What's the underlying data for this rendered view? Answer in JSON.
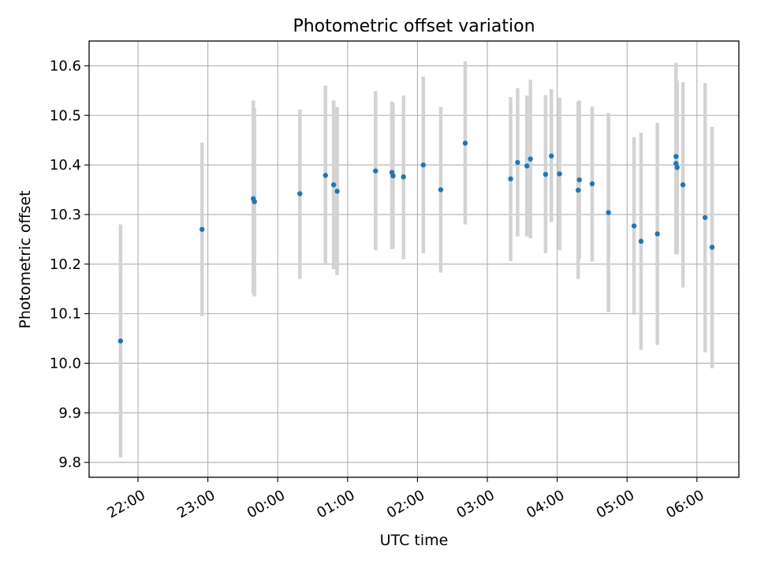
{
  "chart_data": {
    "type": "scatter",
    "title": "Photometric offset variation",
    "xlabel": "UTC time",
    "ylabel": "Photometric offset",
    "x_tick_labels": [
      "22:00",
      "23:00",
      "00:00",
      "01:00",
      "02:00",
      "03:00",
      "04:00",
      "05:00",
      "06:00"
    ],
    "y_tick_labels": [
      "9.8",
      "9.9",
      "10.0",
      "10.1",
      "10.2",
      "10.3",
      "10.4",
      "10.5",
      "10.6"
    ],
    "x_range_hours": [
      -0.7,
      8.6
    ],
    "x_ticks_hours": [
      0,
      1,
      2,
      3,
      4,
      5,
      6,
      7,
      8
    ],
    "ylim": [
      9.77,
      10.65
    ],
    "y_ticks": [
      9.8,
      9.9,
      10.0,
      10.1,
      10.2,
      10.3,
      10.4,
      10.5,
      10.6
    ],
    "grid": true,
    "point_color": "#1f77b4",
    "errorbar_color": "#d3d3d3",
    "points": [
      {
        "t": "21:45",
        "y": 10.045,
        "lo": 9.81,
        "hi": 10.28
      },
      {
        "t": "22:55",
        "y": 10.27,
        "lo": 10.095,
        "hi": 10.445
      },
      {
        "t": "23:39",
        "y": 10.332,
        "lo": 10.14,
        "hi": 10.53
      },
      {
        "t": "23:40",
        "y": 10.326,
        "lo": 10.135,
        "hi": 10.515
      },
      {
        "t": "00:19",
        "y": 10.342,
        "lo": 10.17,
        "hi": 10.512
      },
      {
        "t": "00:41",
        "y": 10.379,
        "lo": 10.198,
        "hi": 10.56
      },
      {
        "t": "00:48",
        "y": 10.36,
        "lo": 10.19,
        "hi": 10.53
      },
      {
        "t": "00:51",
        "y": 10.347,
        "lo": 10.178,
        "hi": 10.517
      },
      {
        "t": "01:24",
        "y": 10.388,
        "lo": 10.228,
        "hi": 10.549
      },
      {
        "t": "01:38",
        "y": 10.385,
        "lo": 10.23,
        "hi": 10.528
      },
      {
        "t": "01:39",
        "y": 10.378,
        "lo": 10.232,
        "hi": 10.525
      },
      {
        "t": "01:48",
        "y": 10.376,
        "lo": 10.21,
        "hi": 10.54
      },
      {
        "t": "02:05",
        "y": 10.4,
        "lo": 10.222,
        "hi": 10.578
      },
      {
        "t": "02:20",
        "y": 10.35,
        "lo": 10.183,
        "hi": 10.517
      },
      {
        "t": "02:41",
        "y": 10.444,
        "lo": 10.28,
        "hi": 10.609
      },
      {
        "t": "03:20",
        "y": 10.372,
        "lo": 10.206,
        "hi": 10.537
      },
      {
        "t": "03:26",
        "y": 10.405,
        "lo": 10.256,
        "hi": 10.555
      },
      {
        "t": "03:34",
        "y": 10.398,
        "lo": 10.256,
        "hi": 10.54
      },
      {
        "t": "03:37",
        "y": 10.412,
        "lo": 10.252,
        "hi": 10.572
      },
      {
        "t": "03:50",
        "y": 10.381,
        "lo": 10.222,
        "hi": 10.541
      },
      {
        "t": "03:55",
        "y": 10.418,
        "lo": 10.285,
        "hi": 10.553
      },
      {
        "t": "04:02",
        "y": 10.382,
        "lo": 10.228,
        "hi": 10.536
      },
      {
        "t": "04:18",
        "y": 10.349,
        "lo": 10.17,
        "hi": 10.527
      },
      {
        "t": "04:19",
        "y": 10.37,
        "lo": 10.21,
        "hi": 10.53
      },
      {
        "t": "04:30",
        "y": 10.362,
        "lo": 10.205,
        "hi": 10.518
      },
      {
        "t": "04:44",
        "y": 10.304,
        "lo": 10.103,
        "hi": 10.505
      },
      {
        "t": "05:06",
        "y": 10.277,
        "lo": 10.098,
        "hi": 10.456
      },
      {
        "t": "05:12",
        "y": 10.246,
        "lo": 10.027,
        "hi": 10.465
      },
      {
        "t": "05:26",
        "y": 10.261,
        "lo": 10.037,
        "hi": 10.485
      },
      {
        "t": "05:42",
        "y": 10.417,
        "lo": 10.228,
        "hi": 10.606
      },
      {
        "t": "05:42",
        "y": 10.403,
        "lo": 10.22,
        "hi": 10.587
      },
      {
        "t": "05:43",
        "y": 10.395,
        "lo": 10.22,
        "hi": 10.57
      },
      {
        "t": "05:48",
        "y": 10.36,
        "lo": 10.153,
        "hi": 10.567
      },
      {
        "t": "06:07",
        "y": 10.294,
        "lo": 10.022,
        "hi": 10.565
      },
      {
        "t": "06:13",
        "y": 10.234,
        "lo": 9.99,
        "hi": 10.477
      }
    ]
  }
}
